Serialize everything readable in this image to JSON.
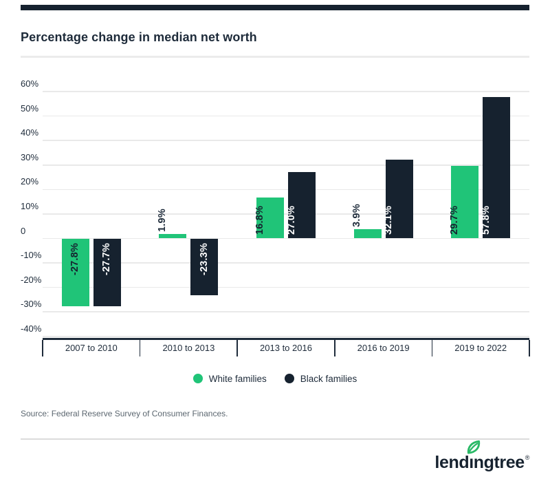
{
  "header": {
    "title": "Percentage change in median net worth"
  },
  "colors": {
    "accent_navy": "#16222F",
    "green": "#20C478",
    "navy": "#16222F",
    "grid": "#e9e9e9",
    "axis": "#1E2B3A",
    "text_dark": "#1E2B3A",
    "text_muted": "#5c6770",
    "label_on_green": "#16222F",
    "label_on_navy": "#FFFFFF",
    "leaf_green": "#2AB967"
  },
  "chart_data": {
    "type": "bar",
    "title": "Percentage change in median net worth",
    "categories": [
      "2007 to 2010",
      "2010 to 2013",
      "2013 to 2016",
      "2016 to 2019",
      "2019 to 2022"
    ],
    "series": [
      {
        "name": "White families",
        "color_key": "green",
        "values": [
          -27.8,
          1.9,
          16.8,
          3.9,
          29.7
        ]
      },
      {
        "name": "Black families",
        "color_key": "navy",
        "values": [
          -27.7,
          -23.3,
          27.0,
          32.1,
          57.8
        ]
      }
    ],
    "value_suffix": "%",
    "value_decimals": 1,
    "y_ticks": [
      "60%",
      "50%",
      "40%",
      "30%",
      "20%",
      "10%",
      "0",
      "-10%",
      "-20%",
      "-30%",
      "-40%"
    ],
    "y_tick_values": [
      60,
      50,
      40,
      30,
      20,
      10,
      0,
      -10,
      -20,
      -30,
      -40
    ],
    "ylim": [
      -40,
      60
    ],
    "grid": true,
    "legend_position": "bottom",
    "xlabel": "",
    "ylabel": ""
  },
  "legend": {
    "items": [
      {
        "label": "White families",
        "color": "#20C478"
      },
      {
        "label": "Black families",
        "color": "#16222F"
      }
    ]
  },
  "source": {
    "text": "Source: Federal Reserve Survey of Consumer Finances."
  },
  "footer": {
    "logo_text": "lendingtree",
    "registered_mark": "®"
  }
}
